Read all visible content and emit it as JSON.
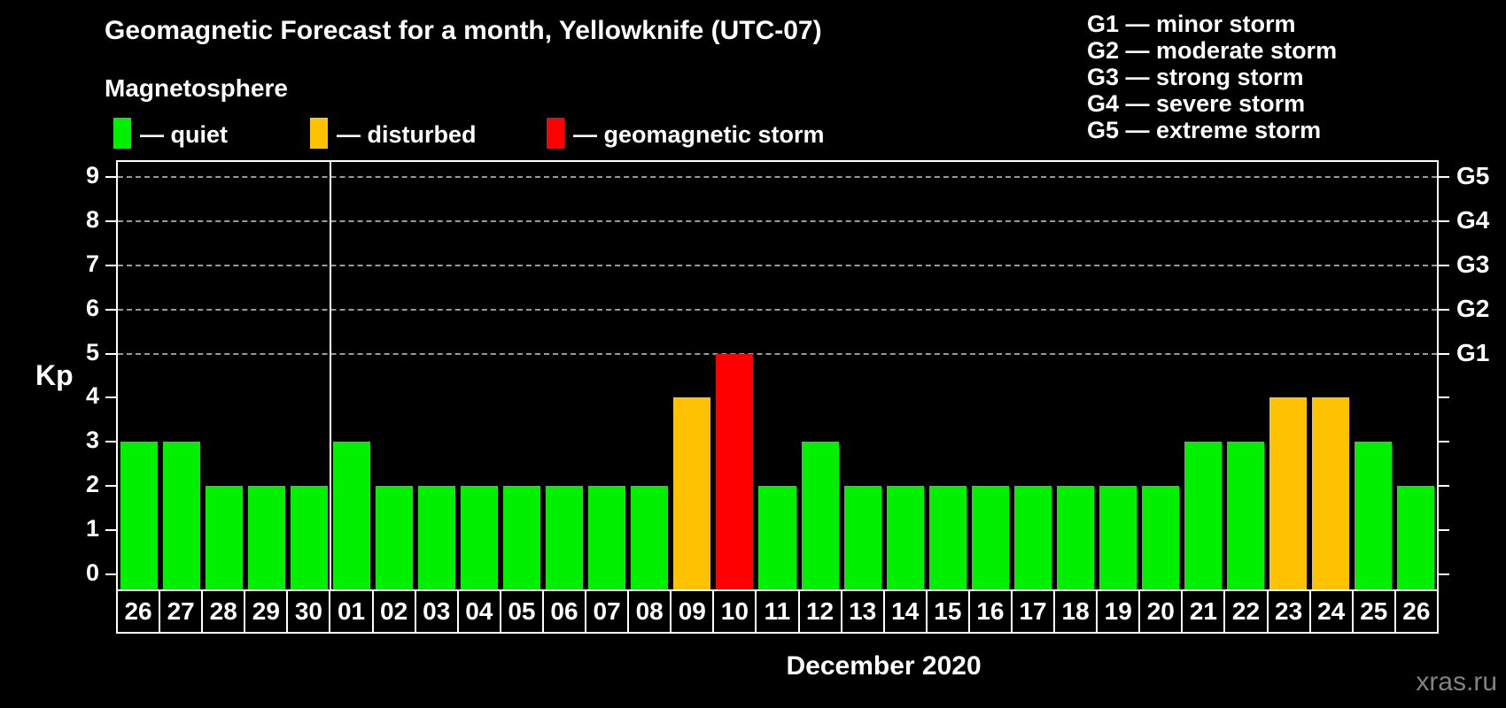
{
  "title": "Geomagnetic Forecast for a month, Yellowknife (UTC-07)",
  "magnetosphere": {
    "label": "Magnetosphere",
    "legend": [
      {
        "name": "quiet",
        "label": "— quiet",
        "color": "#00f000"
      },
      {
        "name": "disturbed",
        "label": "— disturbed",
        "color": "#ffc200"
      },
      {
        "name": "storm",
        "label": "— geomagnetic storm",
        "color": "#ff0000"
      }
    ]
  },
  "g_scale_legend": [
    "G1 — minor storm",
    "G2 — moderate storm",
    "G3 — strong storm",
    "G4 — severe storm",
    "G5 — extreme storm"
  ],
  "axis": {
    "kp_label": "Kp",
    "kp_ticks": [
      0,
      1,
      2,
      3,
      4,
      5,
      6,
      7,
      8,
      9
    ],
    "gridlines_at_kp": [
      5,
      6,
      7,
      8,
      9
    ],
    "g_labels": [
      {
        "kp": 5,
        "label": "G1"
      },
      {
        "kp": 6,
        "label": "G2"
      },
      {
        "kp": 7,
        "label": "G3"
      },
      {
        "kp": 8,
        "label": "G4"
      },
      {
        "kp": 9,
        "label": "G5"
      }
    ]
  },
  "xlabel": "December 2020",
  "watermark": "xras.ru",
  "colors": {
    "quiet": "#00f000",
    "disturbed": "#ffc200",
    "storm": "#ff0000",
    "grid": "#999999",
    "axis": "#ffffff",
    "month_separator": "#ffffff",
    "watermark": "#828282",
    "background": "#000000"
  },
  "chart_data": {
    "type": "bar",
    "title": "Geomagnetic Forecast for a month, Yellowknife (UTC-07)",
    "xlabel": "December 2020",
    "ylabel": "Kp",
    "ylim": [
      0,
      9
    ],
    "grid": "dashed horizontal lines at Kp 5,6,7,8,9 (G1–G5)",
    "legend_position": "top-left",
    "categories": [
      "26",
      "27",
      "28",
      "29",
      "30",
      "01",
      "02",
      "03",
      "04",
      "05",
      "06",
      "07",
      "08",
      "09",
      "10",
      "11",
      "12",
      "13",
      "14",
      "15",
      "16",
      "17",
      "18",
      "19",
      "20",
      "21",
      "22",
      "23",
      "24",
      "25",
      "26"
    ],
    "values": [
      3,
      3,
      2,
      2,
      2,
      3,
      2,
      2,
      2,
      2,
      2,
      2,
      2,
      4,
      5,
      2,
      3,
      2,
      2,
      2,
      2,
      2,
      2,
      2,
      2,
      3,
      3,
      4,
      4,
      3,
      2
    ],
    "statuses": [
      "quiet",
      "quiet",
      "quiet",
      "quiet",
      "quiet",
      "quiet",
      "quiet",
      "quiet",
      "quiet",
      "quiet",
      "quiet",
      "quiet",
      "quiet",
      "disturbed",
      "storm",
      "quiet",
      "quiet",
      "quiet",
      "quiet",
      "quiet",
      "quiet",
      "quiet",
      "quiet",
      "quiet",
      "quiet",
      "quiet",
      "quiet",
      "disturbed",
      "disturbed",
      "quiet",
      "quiet"
    ],
    "month_boundary_after_index": 4
  }
}
